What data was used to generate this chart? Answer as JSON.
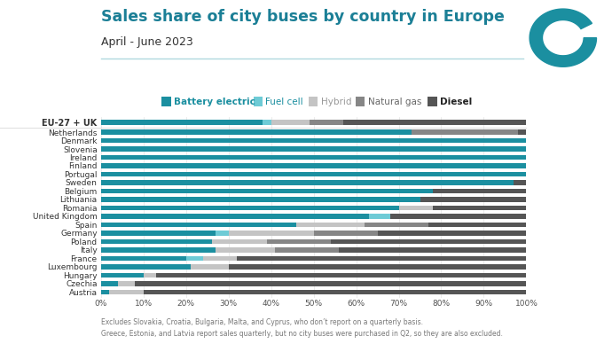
{
  "title": "Sales share of city buses by country in Europe",
  "subtitle": "April - June 2023",
  "footnote1": "Excludes Slovakia, Croatia, Bulgaria, Malta, and Cyprus, who don’t report on a quarterly basis.",
  "footnote2": "Greece, Estonia, and Latvia report sales quarterly, but no city buses were purchased in Q2, so they are also excluded.",
  "categories": [
    "EU-27 + UK",
    "Netherlands",
    "Denmark",
    "Slovenia",
    "Ireland",
    "Finland",
    "Portugal",
    "Sweden",
    "Belgium",
    "Lithuania",
    "Romania",
    "United Kingdom",
    "Spain",
    "Germany",
    "Poland",
    "Italy",
    "France",
    "Luxembourg",
    "Hungary",
    "Czechia",
    "Austria"
  ],
  "segments": [
    "Battery electric",
    "Fuel cell",
    "Hybrid",
    "Natural gas",
    "Diesel"
  ],
  "seg_colors": [
    "#1b8fa0",
    "#6ecbd6",
    "#c4c4c4",
    "#868686",
    "#555555"
  ],
  "seg_text_colors": [
    "#1b8fa0",
    "#1b8fa0",
    "#999999",
    "#666666",
    "#222222"
  ],
  "seg_fontweights": [
    "bold",
    "normal",
    "normal",
    "normal",
    "bold"
  ],
  "data": [
    [
      38,
      2,
      9,
      8,
      43
    ],
    [
      73,
      0,
      0,
      25,
      2
    ],
    [
      100,
      0,
      0,
      0,
      0
    ],
    [
      100,
      0,
      0,
      0,
      0
    ],
    [
      100,
      0,
      0,
      0,
      0
    ],
    [
      100,
      0,
      0,
      0,
      0
    ],
    [
      100,
      0,
      0,
      0,
      0
    ],
    [
      97,
      0,
      0,
      0,
      3
    ],
    [
      78,
      0,
      0,
      0,
      22
    ],
    [
      75,
      0,
      0,
      0,
      25
    ],
    [
      70,
      0,
      8,
      0,
      22
    ],
    [
      63,
      5,
      0,
      0,
      32
    ],
    [
      46,
      0,
      16,
      15,
      23
    ],
    [
      27,
      3,
      20,
      15,
      35
    ],
    [
      26,
      0,
      13,
      15,
      46
    ],
    [
      27,
      0,
      14,
      15,
      44
    ],
    [
      20,
      4,
      8,
      0,
      68
    ],
    [
      21,
      0,
      9,
      0,
      70
    ],
    [
      10,
      0,
      3,
      0,
      87
    ],
    [
      4,
      0,
      4,
      0,
      92
    ],
    [
      2,
      0,
      8,
      0,
      90
    ]
  ],
  "bg_color": "#ffffff",
  "bar_height": 0.62,
  "xticks": [
    0,
    10,
    20,
    30,
    40,
    50,
    60,
    70,
    80,
    90,
    100
  ],
  "xticklabels": [
    "0%",
    "10%",
    "20%",
    "30%",
    "40%",
    "50%",
    "60%",
    "70%",
    "80%",
    "90%",
    "100%"
  ],
  "title_color": "#1b7f96",
  "subtitle_color": "#333333",
  "separator_color": "#b0d8de",
  "grid_color": "#e8e8e8"
}
